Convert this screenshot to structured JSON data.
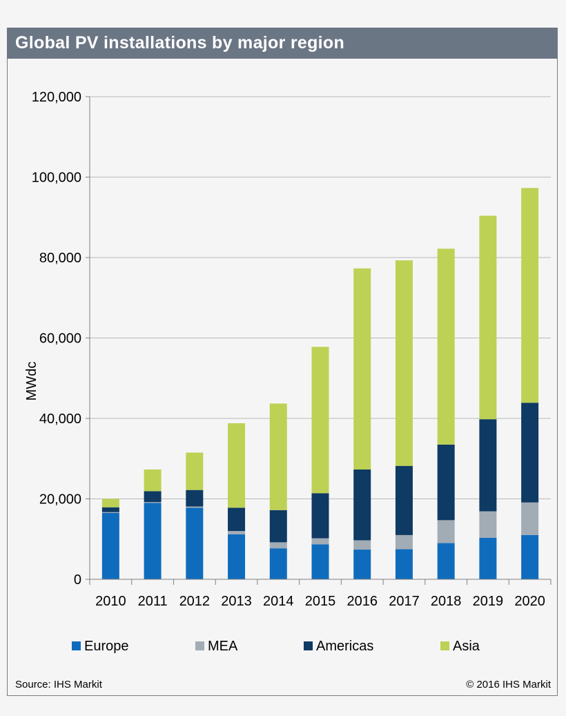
{
  "title": "Global PV installations by major region",
  "source": "Source: IHS Markit",
  "copyright": "© 2016 IHS Markit",
  "colors": {
    "Europe": "#0f6cbd",
    "MEA": "#a2acb5",
    "Americas": "#0e3a64",
    "Asia": "#bdd155",
    "grid": "#b9b9b9",
    "axis": "#7f7f7f"
  },
  "chart_data": {
    "type": "bar",
    "stacked": true,
    "categories": [
      "2010",
      "2011",
      "2012",
      "2013",
      "2014",
      "2015",
      "2016",
      "2017",
      "2018",
      "2019",
      "2020"
    ],
    "ylabel": "MWdc",
    "ylim": [
      0,
      120000
    ],
    "yticks": [
      0,
      20000,
      40000,
      60000,
      80000,
      100000,
      120000
    ],
    "ytick_labels": [
      "0",
      "20,000",
      "40,000",
      "60,000",
      "80,000",
      "100,000",
      "120,000"
    ],
    "grid": true,
    "legend_position": "bottom",
    "series": [
      {
        "name": "Europe",
        "values": [
          16500,
          19000,
          17800,
          11200,
          7700,
          8700,
          7400,
          7500,
          9000,
          10300,
          11000
        ]
      },
      {
        "name": "MEA",
        "values": [
          200,
          200,
          300,
          800,
          1500,
          1500,
          2300,
          3500,
          5700,
          6600,
          8100
        ]
      },
      {
        "name": "Americas",
        "values": [
          1200,
          2700,
          4100,
          5800,
          8000,
          11200,
          17600,
          17200,
          18800,
          22900,
          24800
        ]
      },
      {
        "name": "Asia",
        "values": [
          2100,
          5400,
          9300,
          21000,
          26500,
          36400,
          50000,
          51100,
          48700,
          50600,
          53400
        ]
      }
    ]
  }
}
